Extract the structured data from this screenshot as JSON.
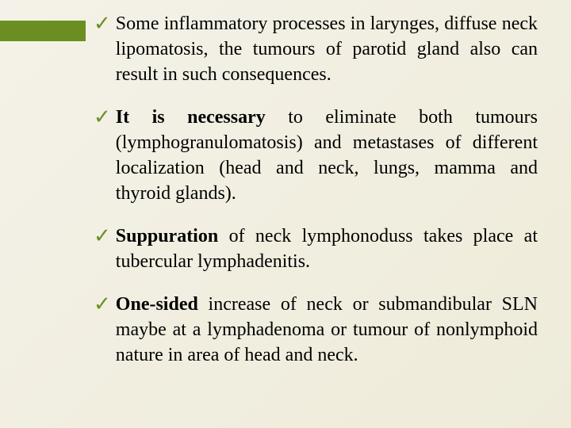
{
  "slide": {
    "background_gradient": [
      "#f4f2e8",
      "#eeebd9"
    ],
    "accent_bar_color": "#6b8e23",
    "checkmark_color": "#6b8e23",
    "font_family": "Times New Roman",
    "body_fontsize": 24,
    "body_lineheight": 32,
    "text_align": "justify",
    "bullets": [
      {
        "lead_bold": "",
        "lead_plain": "Some",
        "rest": " inflammatory processes in larynges, diffuse neck lipomatosis, the tumours of parotid gland also can result in such consequences."
      },
      {
        "lead_bold": "It is necessary",
        "lead_plain": "",
        "rest": " to eliminate both tumours (lymphogranulomatosis) and metastases of different localization (head and neck, lungs, mamma and thyroid glands)."
      },
      {
        "lead_bold": "Suppuration",
        "lead_plain": "",
        "rest": " of neck lymphonoduss takes place at tubercular lymphadenitis."
      },
      {
        "lead_bold": "One-sided",
        "lead_plain": "",
        "rest": " increase of neck or submandibular SLN maybe at a lymphadenoma or tumour of nonlymphoid nature in area of head and neck."
      }
    ]
  }
}
